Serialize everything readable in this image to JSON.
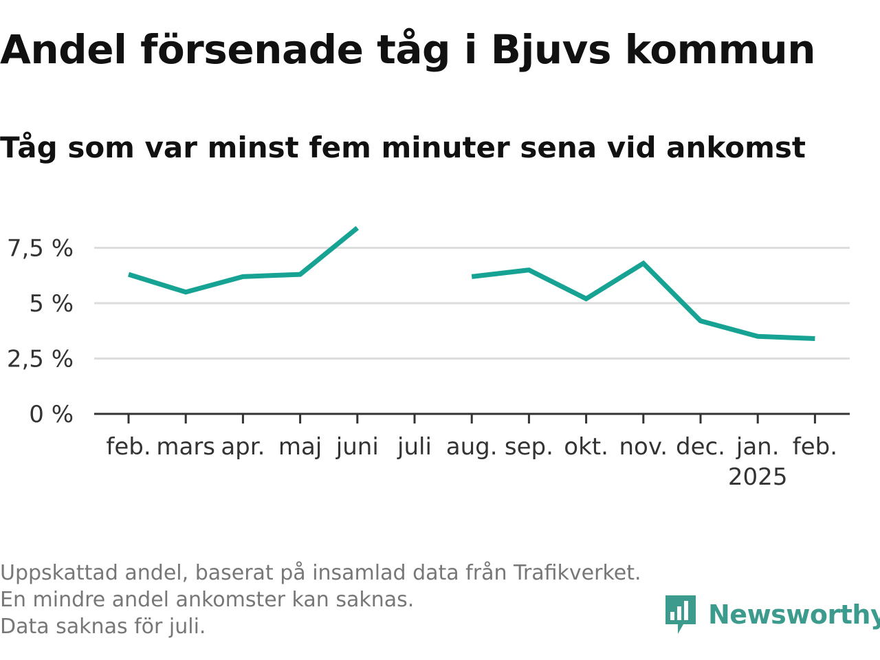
{
  "title": "Andel försenade tåg i Bjuvs kommun",
  "subtitle": "Tåg som var minst fem minuter sena vid ankomst",
  "footnote": {
    "line1": "Uppskattad andel, baserat på insamlad data från Trafikverket. En mindre andel ankomster kan saknas.",
    "line2": "Data saknas för juli."
  },
  "brand": {
    "name": "Newsworthy",
    "icon": "newsworthy-logo-icon",
    "color": "#3d9b8d"
  },
  "colors": {
    "line": "#16a394",
    "grid": "#dddddd",
    "axis": "#333333"
  },
  "chart_data": {
    "type": "line",
    "title": "Andel försenade tåg i Bjuvs kommun",
    "subtitle": "Tåg som var minst fem minuter sena vid ankomst",
    "xlabel": "",
    "ylabel": "",
    "categories": [
      "feb.",
      "mars",
      "apr.",
      "maj",
      "juni",
      "juli",
      "aug.",
      "sep.",
      "okt.",
      "nov.",
      "dec.",
      "jan.",
      "feb."
    ],
    "year_labels": [
      "",
      "",
      "",
      "",
      "",
      "",
      "",
      "",
      "",
      "",
      "",
      "2025",
      ""
    ],
    "series": [
      {
        "values": [
          6.3,
          5.5,
          6.2,
          6.3,
          8.4,
          null,
          6.2,
          6.5,
          5.2,
          6.8,
          4.2,
          3.5,
          3.4
        ]
      }
    ],
    "yticks": [
      0,
      2.5,
      5,
      7.5
    ],
    "ytick_labels": [
      "0 %",
      "2,5 %",
      "5 %",
      "7,5 %"
    ],
    "ylim": [
      0,
      8.4
    ],
    "grid": true,
    "legend": "none"
  }
}
